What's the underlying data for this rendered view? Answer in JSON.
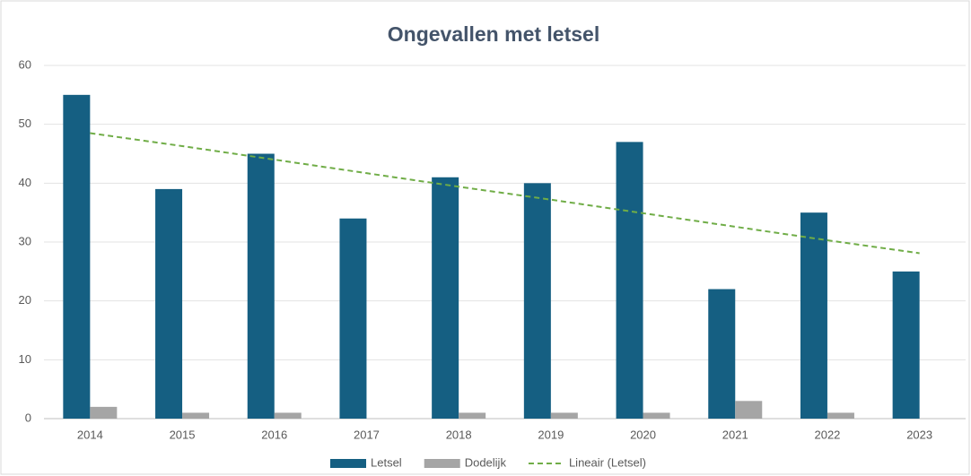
{
  "chart_data": {
    "type": "bar",
    "title": "Ongevallen met letsel",
    "categories": [
      "2014",
      "2015",
      "2016",
      "2017",
      "2018",
      "2019",
      "2020",
      "2021",
      "2022",
      "2023"
    ],
    "series": [
      {
        "name": "Letsel",
        "color": "#155f82",
        "values": [
          55,
          39,
          45,
          34,
          41,
          40,
          47,
          22,
          35,
          25
        ]
      },
      {
        "name": "Dodelijk",
        "color": "#a5a5a5",
        "values": [
          2,
          1,
          1,
          0,
          1,
          1,
          1,
          3,
          1,
          0
        ]
      },
      {
        "name": "Lineair (Letsel)",
        "color": "#70ad47",
        "type": "line",
        "dashed": true,
        "values": [
          48.5,
          46.3,
          44.0,
          41.7,
          39.4,
          37.2,
          34.9,
          32.6,
          30.3,
          28.1
        ]
      }
    ],
    "ylim": [
      0,
      60
    ],
    "yticks": [
      0,
      10,
      20,
      30,
      40,
      50,
      60
    ],
    "grid": true,
    "legend": "bottom"
  }
}
